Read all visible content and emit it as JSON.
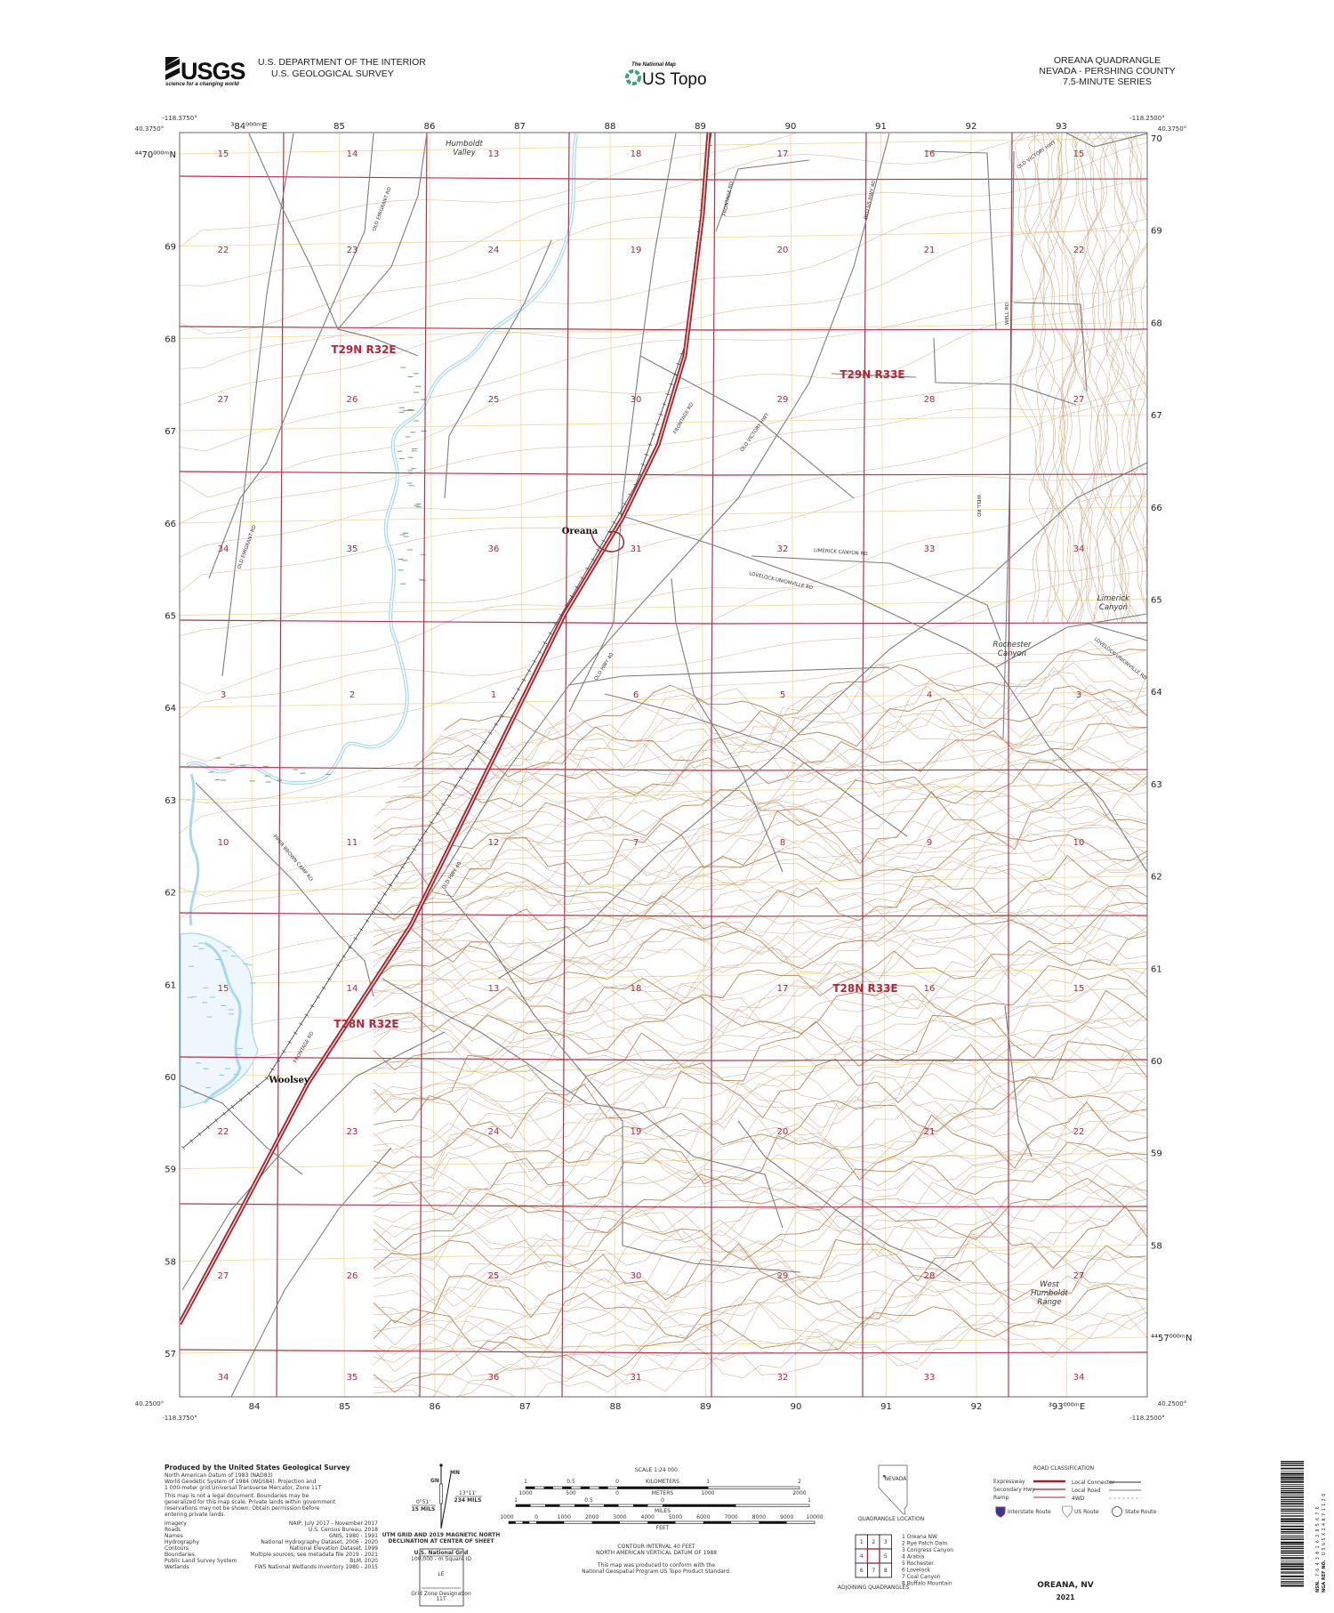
{
  "header": {
    "agency_logo": "USGS",
    "agency_tagline": "science for a changing world",
    "department": "U.S. DEPARTMENT OF THE INTERIOR",
    "survey": "U.S. GEOLOGICAL SURVEY",
    "product_kicker": "The National Map",
    "product_name": "US Topo",
    "quad_title": "OREANA QUADRANGLE",
    "quad_state_county": "NEVADA - PERSHING COUNTY",
    "quad_series": "7.5-MINUTE SERIES"
  },
  "map": {
    "corners": {
      "nw_lon": "-118.3750°",
      "nw_lat": "40.3750°",
      "ne_lon": "-118.2500°",
      "ne_lat": "40.3750°",
      "sw_lon": "-118.3750°",
      "sw_lat": "40.2500°",
      "se_lon": "-118.2500°",
      "se_lat": "40.2500°"
    },
    "eastings_top": [
      "³84⁰⁰⁰ᵐE",
      "85",
      "86",
      "87",
      "88",
      "89",
      "90",
      "91",
      "92",
      "93"
    ],
    "eastings_bottom": [
      "84",
      "85",
      "86",
      "87",
      "88",
      "89",
      "90",
      "91",
      "92",
      "³93⁰⁰⁰ᵐE"
    ],
    "northings_left": [
      "⁴⁴70⁰⁰⁰ᵐN",
      "69",
      "68",
      "67",
      "66",
      "65",
      "64",
      "63",
      "62",
      "61",
      "60",
      "59",
      "58",
      "57"
    ],
    "northings_right": [
      "70",
      "69",
      "68",
      "67",
      "66",
      "65",
      "64",
      "63",
      "62",
      "61",
      "60",
      "59",
      "58",
      "⁴⁴57⁰⁰⁰ᵐN"
    ],
    "sections": [
      [
        "15",
        "14",
        "13",
        "18",
        "17",
        "16",
        "15"
      ],
      [
        "22",
        "23",
        "24",
        "19",
        "20",
        "21",
        "22"
      ],
      [
        "27",
        "26",
        "25",
        "30",
        "29",
        "28",
        "27"
      ],
      [
        "34",
        "35",
        "36",
        "31",
        "32",
        "33",
        "34"
      ],
      [
        "3",
        "2",
        "1",
        "6",
        "5",
        "4",
        "3"
      ],
      [
        "10",
        "11",
        "12",
        "7",
        "8",
        "9",
        "10"
      ],
      [
        "15",
        "14",
        "13",
        "18",
        "17",
        "16",
        "15"
      ],
      [
        "22",
        "23",
        "24",
        "19",
        "20",
        "21",
        "22"
      ],
      [
        "27",
        "26",
        "25",
        "30",
        "29",
        "28",
        "27"
      ],
      [
        "34",
        "35",
        "36",
        "31",
        "32",
        "33",
        "34"
      ]
    ],
    "townships": [
      "T29N R32E",
      "T29N R33E",
      "T28N R33E",
      "T28N R32E"
    ],
    "places": {
      "humboldt_valley": [
        "Humboldt",
        "Valley"
      ],
      "limerick_canyon": [
        "Limerick",
        "Canyon"
      ],
      "rochester_canyon": [
        "Rochester",
        "Canyon"
      ],
      "west_humboldt_range": [
        "West",
        "Humboldt",
        "Range"
      ]
    },
    "towns": {
      "oreana": "Oreana",
      "woolsey": "Woolsey"
    },
    "roads": {
      "old_emigrant_1": "OLD EMIGRANT RD",
      "old_emigrant_2": "OLD EMIGRANT RD",
      "frontage_1": "FRONTAGE RD",
      "frontage_2": "FRONTAGE RD",
      "frontage_3": "FRONTAGE RD",
      "old_us_hwy_40": "OLD US HWY 40",
      "old_victory_1": "OLD VICTORY HWY",
      "old_victory_2": "OLD VICTORY HWY",
      "well_rd_1": "WELL RD",
      "well_rd_2": "WELL RD",
      "limerick_canyon_rd": "LIMERICK CANYON RD",
      "lovelock_unionville_1": "LOVELOCK-UNIONVILLE RD",
      "lovelock_unionville_2": "LOVELOCK-UNIONVILLE RD",
      "old_hwy_40_1": "OLD HWY 40",
      "old_hwy_40_2": "OLD HWY 40",
      "piper_brown": "PIPER BROWN CAMP RD"
    },
    "colors": {
      "plss": "#b8324a",
      "interstate": "#a2262e",
      "road": "#7a7a7a",
      "water": "#a8d8ee",
      "contour": "#c8a585",
      "utm_grid": "#f1dca4"
    }
  },
  "footer": {
    "producer_title": "Produced by the United States Geological Survey",
    "datum_lines": [
      "North American Datum of 1983 (NAD83)",
      "World Geodetic System of 1984 (WGS84).  Projection and",
      "1 000-meter grid:Universal Transverse Mercator, Zone 11T"
    ],
    "disclaimer_lines": [
      "This map is not a legal document. Boundaries may be",
      "generalized for this map scale. Private lands within government",
      "reservations may not be shown. Obtain permission before",
      "entering private lands."
    ],
    "sources": [
      {
        "label": "Imagery",
        "value": "NAIP, July 2017 - November 2017"
      },
      {
        "label": "Roads",
        "value": "U.S. Census Bureau, 2018"
      },
      {
        "label": "Names",
        "value": "GNIS, 1980 - 1991"
      },
      {
        "label": "Hydrography",
        "value": "National Hydrography Dataset, 2006 - 2020"
      },
      {
        "label": "Contours",
        "value": "National Elevation Dataset, 1999"
      },
      {
        "label": "Boundaries",
        "value": "Multiple sources; see metadata file 2019 - 2021"
      },
      {
        "label": "Public Land Survey System",
        "value": "BLM, 2020"
      },
      {
        "label": "Wetlands",
        "value": "FWS National Wetlands Inventory 1980 - 2015"
      }
    ],
    "declination": {
      "mn_label": "MN",
      "gn_label": "GN",
      "gn_angle": "0°51'",
      "gn_mils": "15 MILS",
      "mn_angle": "13°11'",
      "mn_mils": "234 MILS",
      "caption_1": "UTM GRID AND 2019 MAGNETIC NORTH",
      "caption_2": "DECLINATION AT CENTER OF SHEET"
    },
    "usng": {
      "title": "U.S. National Grid",
      "subtitle": "100,000 - m Square ID",
      "square_id": "LE",
      "gzd_label": "Grid Zone Designation",
      "gzd": "11T"
    },
    "scale": {
      "title": "SCALE 1:24 000",
      "km_ticks": [
        "1",
        "0.5",
        "0",
        "1",
        "2"
      ],
      "km_unit": "KILOMETERS",
      "m_ticks": [
        "1000",
        "500",
        "0",
        "1000",
        "2000"
      ],
      "m_unit": "METERS",
      "mi_ticks": [
        "1",
        "0.5",
        "0",
        "1"
      ],
      "mi_unit": "MILES",
      "ft_ticks": [
        "1000",
        "0",
        "1000",
        "2000",
        "3000",
        "4000",
        "5000",
        "6000",
        "7000",
        "8000",
        "9000",
        "10000"
      ],
      "ft_unit": "FEET",
      "contour_1": "CONTOUR INTERVAL 40 FEET",
      "contour_2": "NORTH AMERICAN VERTICAL DATUM OF 1988",
      "conform_1": "This map was produced to conform with the",
      "conform_2": "National Geospatial Program US Topo Product Standard."
    },
    "location": {
      "state": "NEVADA",
      "caption": "QUADRANGLE LOCATION"
    },
    "adjoining": {
      "caption": "ADJOINING QUADRANGLES",
      "cells": [
        "1",
        "2",
        "3",
        "4",
        "",
        "5",
        "6",
        "7",
        "8"
      ],
      "list": [
        "1 Oreana NW",
        "2 Rye Patch Dam",
        "3 Congress Canyon",
        "4 Arabia",
        "5 Rochester",
        "6 Lovelock",
        "7 Coal Canyon",
        "8 Buffalo Mountain"
      ]
    },
    "road_classification": {
      "title": "ROAD CLASSIFICATION",
      "left": [
        "Expressway",
        "Secondary Hwy",
        "Ramp"
      ],
      "right": [
        "Local Connector",
        "Local Road",
        "4WD"
      ],
      "shields": [
        "Interstate Route",
        "US Route",
        "State Route"
      ]
    },
    "quad_name": "OREANA,  NV",
    "year": "2021",
    "barcode": {
      "nsn_label": "NSN.",
      "nsn": "7643016385676",
      "nga_label": "NGA REF NO.",
      "nga": "USGSX24K71128"
    }
  }
}
